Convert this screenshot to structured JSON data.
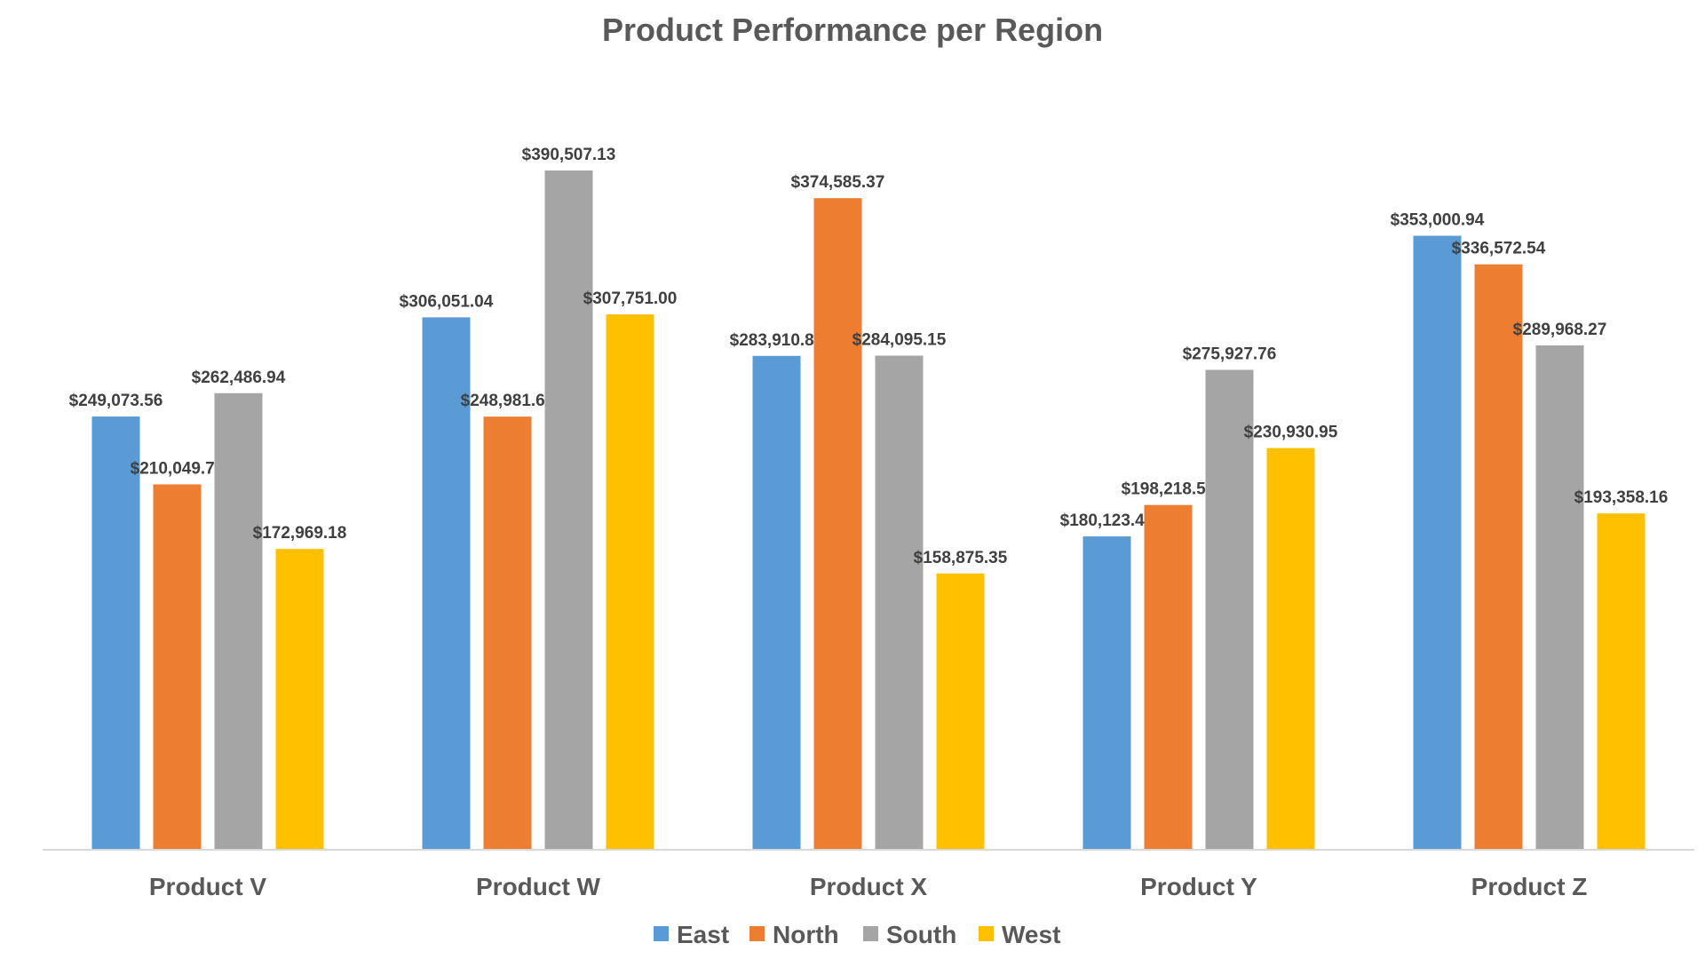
{
  "chart_data": {
    "type": "bar",
    "title": "Product Performance per Region",
    "categories": [
      "Product V",
      "Product W",
      "Product X",
      "Product Y",
      "Product Z"
    ],
    "series": [
      {
        "name": "East",
        "color": "#5B9BD5",
        "values": [
          249073.56,
          306051.04,
          283910.87,
          180123.44,
          353000.94
        ],
        "labels": [
          "$249,073.56",
          "$306,051.04",
          "$283,910.87",
          "$180,123.44",
          "$353,000.94"
        ]
      },
      {
        "name": "North",
        "color": "#ED7D31",
        "values": [
          210049.71,
          248981.64,
          374585.37,
          198218.5,
          336572.54
        ],
        "labels": [
          "$210,049.71",
          "$248,981.64",
          "$374,585.37",
          "$198,218.50",
          "$336,572.54"
        ]
      },
      {
        "name": "South",
        "color": "#A5A5A5",
        "values": [
          262486.94,
          390507.13,
          284095.15,
          275927.76,
          289968.27
        ],
        "labels": [
          "$262,486.94",
          "$390,507.13",
          "$284,095.15",
          "$275,927.76",
          "$289,968.27"
        ]
      },
      {
        "name": "West",
        "color": "#FFC000",
        "values": [
          172969.18,
          307751.0,
          158875.35,
          230930.95,
          193358.16
        ],
        "labels": [
          "$172,969.18",
          "$307,751.00",
          "$158,875.35",
          "$230,930.95",
          "$193,358.16"
        ]
      }
    ],
    "xlabel": "",
    "ylabel": "",
    "ylim": [
      0,
      400000
    ],
    "grid": false,
    "legend": "bottom-center",
    "data_labels": true
  }
}
